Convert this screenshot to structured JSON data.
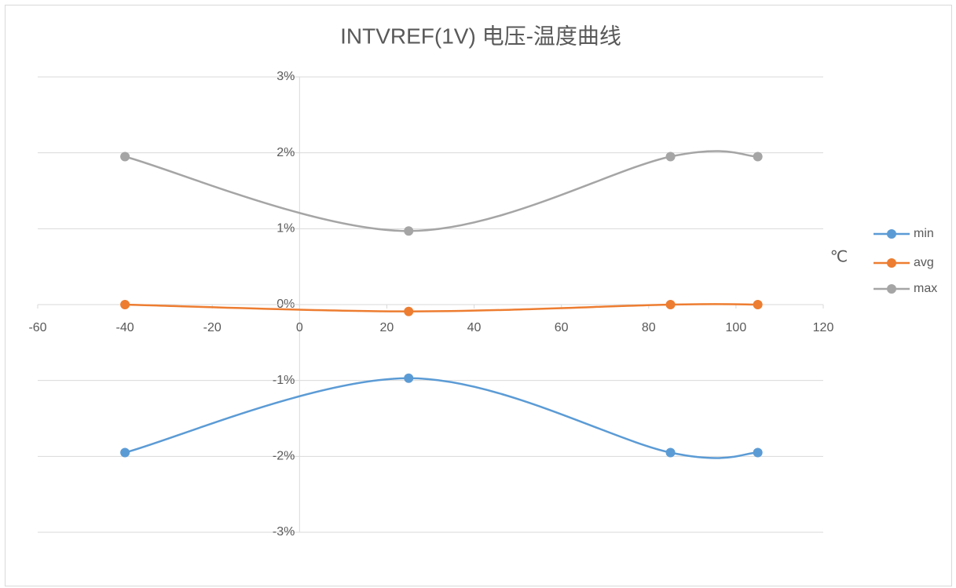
{
  "chart_data": {
    "type": "scatter",
    "smooth": true,
    "title": "INTVREF(1V) 电压-温度曲线",
    "xlabel": "℃",
    "x": [
      -40,
      25,
      85,
      105
    ],
    "series": [
      {
        "name": "min",
        "color": "#5b9bd5",
        "values": [
          -1.95,
          -0.97,
          -1.95,
          -1.95
        ]
      },
      {
        "name": "avg",
        "color": "#ed7d31",
        "values": [
          0,
          -0.09,
          0,
          0
        ]
      },
      {
        "name": "max",
        "color": "#a5a5a5",
        "values": [
          1.95,
          0.97,
          1.95,
          1.95
        ]
      }
    ],
    "xlim": [
      -60,
      120
    ],
    "xticks": [
      -60,
      -40,
      -20,
      0,
      20,
      40,
      60,
      80,
      100,
      120
    ],
    "ylim": [
      -3,
      3
    ],
    "yticks": [
      {
        "value": -3,
        "label": "-3%"
      },
      {
        "value": -2,
        "label": "-2%"
      },
      {
        "value": -1,
        "label": "-1%"
      },
      {
        "value": 0,
        "label": "0%"
      },
      {
        "value": 1,
        "label": "1%"
      },
      {
        "value": 2,
        "label": "2%"
      },
      {
        "value": 3,
        "label": "3%"
      }
    ],
    "grid": true,
    "legend": "right"
  }
}
